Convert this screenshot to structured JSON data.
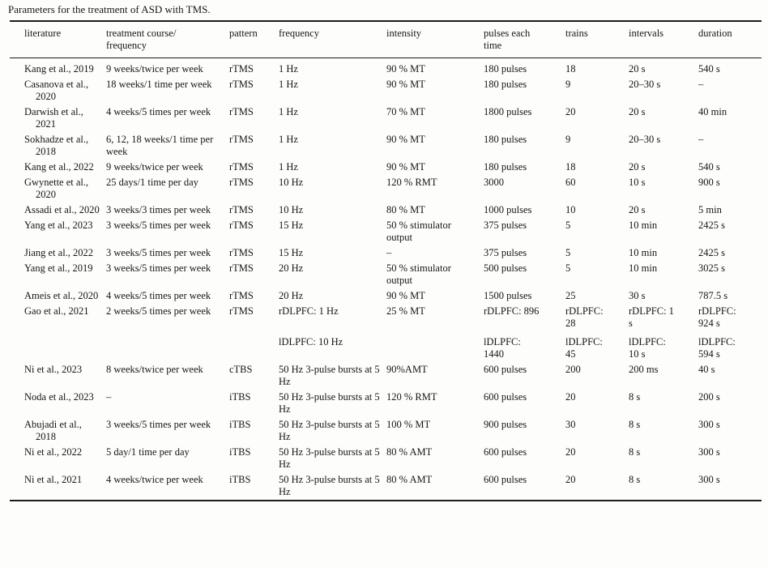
{
  "title": "Parameters for the treatment of ASD with TMS.",
  "table": {
    "fields": [
      "literature",
      "treatment",
      "pattern",
      "frequency",
      "intensity",
      "pulses",
      "trains",
      "intervals",
      "duration"
    ],
    "columns": {
      "literature": "literature",
      "treatment": "treatment course/\nfrequency",
      "pattern": "pattern",
      "frequency": "frequency",
      "intensity": "intensity",
      "pulses": "pulses each\ntime",
      "trains": "trains",
      "intervals": "intervals",
      "duration": "duration"
    },
    "rows": [
      {
        "literature": "Kang et al., 2019",
        "treatment": "9 weeks/twice per week",
        "pattern": "rTMS",
        "frequency": "1 Hz",
        "intensity": "90 % MT",
        "pulses": "180 pulses",
        "trains": "18",
        "intervals": "20 s",
        "duration": "540 s"
      },
      {
        "literature": "Casanova et al., 2020",
        "treatment": "18 weeks/1 time per week",
        "pattern": "rTMS",
        "frequency": "1 Hz",
        "intensity": "90 % MT",
        "pulses": "180 pulses",
        "trains": "9",
        "intervals": "20–30 s",
        "duration": "–"
      },
      {
        "literature": "Darwish et al., 2021",
        "treatment": "4 weeks/5 times per week",
        "pattern": "rTMS",
        "frequency": "1 Hz",
        "intensity": "70 % MT",
        "pulses": "1800 pulses",
        "trains": "20",
        "intervals": "20 s",
        "duration": "40 min"
      },
      {
        "literature": "Sokhadze et al., 2018",
        "treatment": "6, 12, 18 weeks/1 time per week",
        "pattern": "rTMS",
        "frequency": "1 Hz",
        "intensity": "90 % MT",
        "pulses": "180 pulses",
        "trains": "9",
        "intervals": "20–30 s",
        "duration": "–"
      },
      {
        "literature": "Kang et al., 2022",
        "treatment": "9 weeks/twice per week",
        "pattern": "rTMS",
        "frequency": "1 Hz",
        "intensity": "90 % MT",
        "pulses": "180 pulses",
        "trains": "18",
        "intervals": "20 s",
        "duration": "540 s"
      },
      {
        "literature": "Gwynette et al., 2020",
        "treatment": "25 days/1 time per day",
        "pattern": "rTMS",
        "frequency": "10 Hz",
        "intensity": "120 % RMT",
        "pulses": "3000",
        "trains": "60",
        "intervals": "10 s",
        "duration": "900 s"
      },
      {
        "literature": "Assadi et al., 2020",
        "treatment": "3 weeks/3 times per week",
        "pattern": "rTMS",
        "frequency": "10 Hz",
        "intensity": "80 % MT",
        "pulses": "1000 pulses",
        "trains": "10",
        "intervals": "20 s",
        "duration": "5 min"
      },
      {
        "literature": "Yang et al., 2023",
        "treatment": "3 weeks/5 times per week",
        "pattern": "rTMS",
        "frequency": "15 Hz",
        "intensity": "50 % stimulator output",
        "pulses": "375 pulses",
        "trains": "5",
        "intervals": "10 min",
        "duration": "2425 s"
      },
      {
        "literature": "Jiang et al., 2022",
        "treatment": "3 weeks/5 times per week",
        "pattern": "rTMS",
        "frequency": "15 Hz",
        "intensity": "–",
        "pulses": "375 pulses",
        "trains": "5",
        "intervals": "10 min",
        "duration": "2425 s"
      },
      {
        "literature": "Yang et al., 2019",
        "treatment": "3 weeks/5 times per week",
        "pattern": "rTMS",
        "frequency": "20 Hz",
        "intensity": "50 % stimulator output",
        "pulses": "500 pulses",
        "trains": "5",
        "intervals": "10 min",
        "duration": "3025 s"
      },
      {
        "literature": "Ameis et al., 2020",
        "treatment": "4 weeks/5 times per week",
        "pattern": "rTMS",
        "frequency": "20 Hz",
        "intensity": "90 % MT",
        "pulses": "1500 pulses",
        "trains": "25",
        "intervals": "30 s",
        "duration": "787.5 s"
      },
      {
        "literature": "Gao et al., 2021",
        "treatment": "2 weeks/5 times per week",
        "pattern": "rTMS",
        "frequency": [
          "rDLPFC: 1 Hz",
          "lDLPFC: 10 Hz"
        ],
        "intensity": "25 % MT",
        "pulses": [
          "rDLPFC: 896",
          "lDLPFC:\n1440"
        ],
        "trains": [
          "rDLPFC:\n28",
          "lDLPFC:\n45"
        ],
        "intervals": [
          "rDLPFC: 1\ns",
          "lDLPFC:\n10 s"
        ],
        "duration": [
          "rDLPFC:\n924 s",
          "lDLPFC:\n594 s"
        ]
      },
      {
        "literature": "Ni et al., 2023",
        "treatment": "8 weeks/twice per week",
        "pattern": "cTBS",
        "frequency": "50 Hz 3-pulse bursts at 5 Hz",
        "intensity": "90%AMT",
        "pulses": "600 pulses",
        "trains": "200",
        "intervals": "200 ms",
        "duration": "40 s"
      },
      {
        "literature": "Noda et al., 2023",
        "treatment": "–",
        "pattern": "iTBS",
        "frequency": "50 Hz 3-pulse bursts at 5 Hz",
        "intensity": "120 % RMT",
        "pulses": "600 pulses",
        "trains": "20",
        "intervals": "8 s",
        "duration": "200 s"
      },
      {
        "literature": "Abujadi et al., 2018",
        "treatment": "3 weeks/5 times per week",
        "pattern": "iTBS",
        "frequency": "50 Hz 3-pulse bursts at 5 Hz",
        "intensity": "100 % MT",
        "pulses": "900 pulses",
        "trains": "30",
        "intervals": "8 s",
        "duration": "300 s"
      },
      {
        "literature": "Ni et al., 2022",
        "treatment": "5 day/1 time per day",
        "pattern": "iTBS",
        "frequency": "50 Hz 3-pulse bursts at 5 Hz",
        "intensity": "80 % AMT",
        "pulses": "600 pulses",
        "trains": "20",
        "intervals": "8 s",
        "duration": "300 s"
      },
      {
        "literature": "Ni et al., 2021",
        "treatment": "4 weeks/twice per week",
        "pattern": "iTBS",
        "frequency": "50 Hz 3-pulse bursts at 5 Hz",
        "intensity": "80 % AMT",
        "pulses": "600 pulses",
        "trains": "20",
        "intervals": "8 s",
        "duration": "300 s"
      }
    ]
  }
}
